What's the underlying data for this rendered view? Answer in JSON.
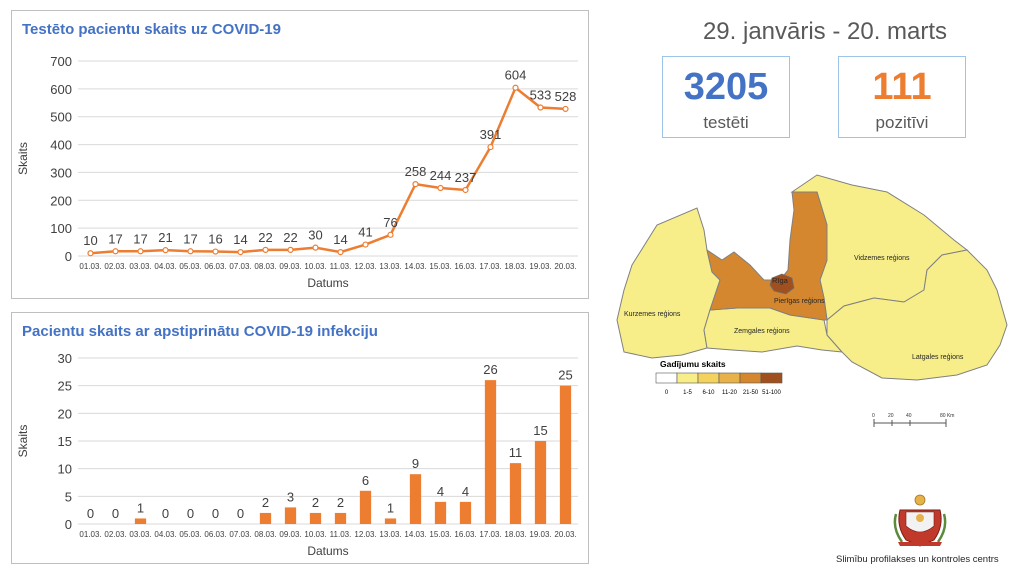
{
  "date_range": "29. janvāris - 20. marts",
  "stats": {
    "tested": {
      "value": "3205",
      "label": "testēti",
      "color": "#4472c4"
    },
    "positive": {
      "value": "111",
      "label": "pozitīvi",
      "color": "#ed7d31"
    }
  },
  "chart_data": [
    {
      "type": "line",
      "title": "Testēto pacientu skaits uz COVID-19",
      "xlabel": "Datums",
      "ylabel": "Skaits",
      "ylim": [
        0,
        700
      ],
      "yticks": [
        "0",
        "100",
        "200",
        "300",
        "400",
        "500",
        "600",
        "700"
      ],
      "grid": true,
      "color": "#ed7d31",
      "categories": [
        "01.03.",
        "02.03.",
        "03.03.",
        "04.03.",
        "05.03.",
        "06.03.",
        "07.03.",
        "08.03.",
        "09.03.",
        "10.03.",
        "11.03.",
        "12.03.",
        "13.03.",
        "14.03.",
        "15.03.",
        "16.03.",
        "17.03.",
        "18.03.",
        "19.03.",
        "20.03."
      ],
      "values": [
        10,
        17,
        17,
        21,
        17,
        16,
        14,
        22,
        22,
        30,
        14,
        41,
        76,
        258,
        244,
        237,
        391,
        604,
        533,
        528
      ]
    },
    {
      "type": "bar",
      "title": "Pacientu skaits ar apstiprinātu COVID-19 infekciju",
      "xlabel": "Datums",
      "ylabel": "Skaits",
      "ylim": [
        0,
        30
      ],
      "yticks": [
        "0",
        "5",
        "10",
        "15",
        "20",
        "25",
        "30"
      ],
      "grid": true,
      "color": "#ed7d31",
      "categories": [
        "01.03.",
        "02.03.",
        "03.03.",
        "04.03.",
        "05.03.",
        "06.03.",
        "07.03.",
        "08.03.",
        "09.03.",
        "10.03.",
        "11.03.",
        "12.03.",
        "13.03.",
        "14.03.",
        "15.03.",
        "16.03.",
        "17.03.",
        "18.03.",
        "19.03.",
        "20.03."
      ],
      "values": [
        0,
        0,
        1,
        0,
        0,
        0,
        0,
        2,
        3,
        2,
        2,
        6,
        1,
        9,
        4,
        4,
        26,
        11,
        15,
        25
      ]
    }
  ],
  "map": {
    "regions": [
      {
        "name": "Rīga",
        "color": "#a0501e"
      },
      {
        "name": "Pierīgas reģions",
        "color": "#d4872e"
      },
      {
        "name": "Kurzemes reģions",
        "color": "#f7ee8a"
      },
      {
        "name": "Zemgales reģions",
        "color": "#f7ee8a"
      },
      {
        "name": "Vidzemes reģions",
        "color": "#f7ee8a"
      },
      {
        "name": "Latgales reģions",
        "color": "#f7ee8a"
      }
    ],
    "legend_title": "Gadījumu skaits",
    "legend": [
      {
        "label": "0",
        "color": "#ffffff"
      },
      {
        "label": "1-5",
        "color": "#f7ee8a"
      },
      {
        "label": "6-10",
        "color": "#f3d35e"
      },
      {
        "label": "11-20",
        "color": "#e8b24a"
      },
      {
        "label": "21-50",
        "color": "#d4872e"
      },
      {
        "label": "51-100",
        "color": "#a0501e"
      }
    ],
    "scale_labels": [
      "0",
      "20",
      "40",
      "80 Km"
    ]
  },
  "organization": "Slimību profilakses un kontroles centrs"
}
